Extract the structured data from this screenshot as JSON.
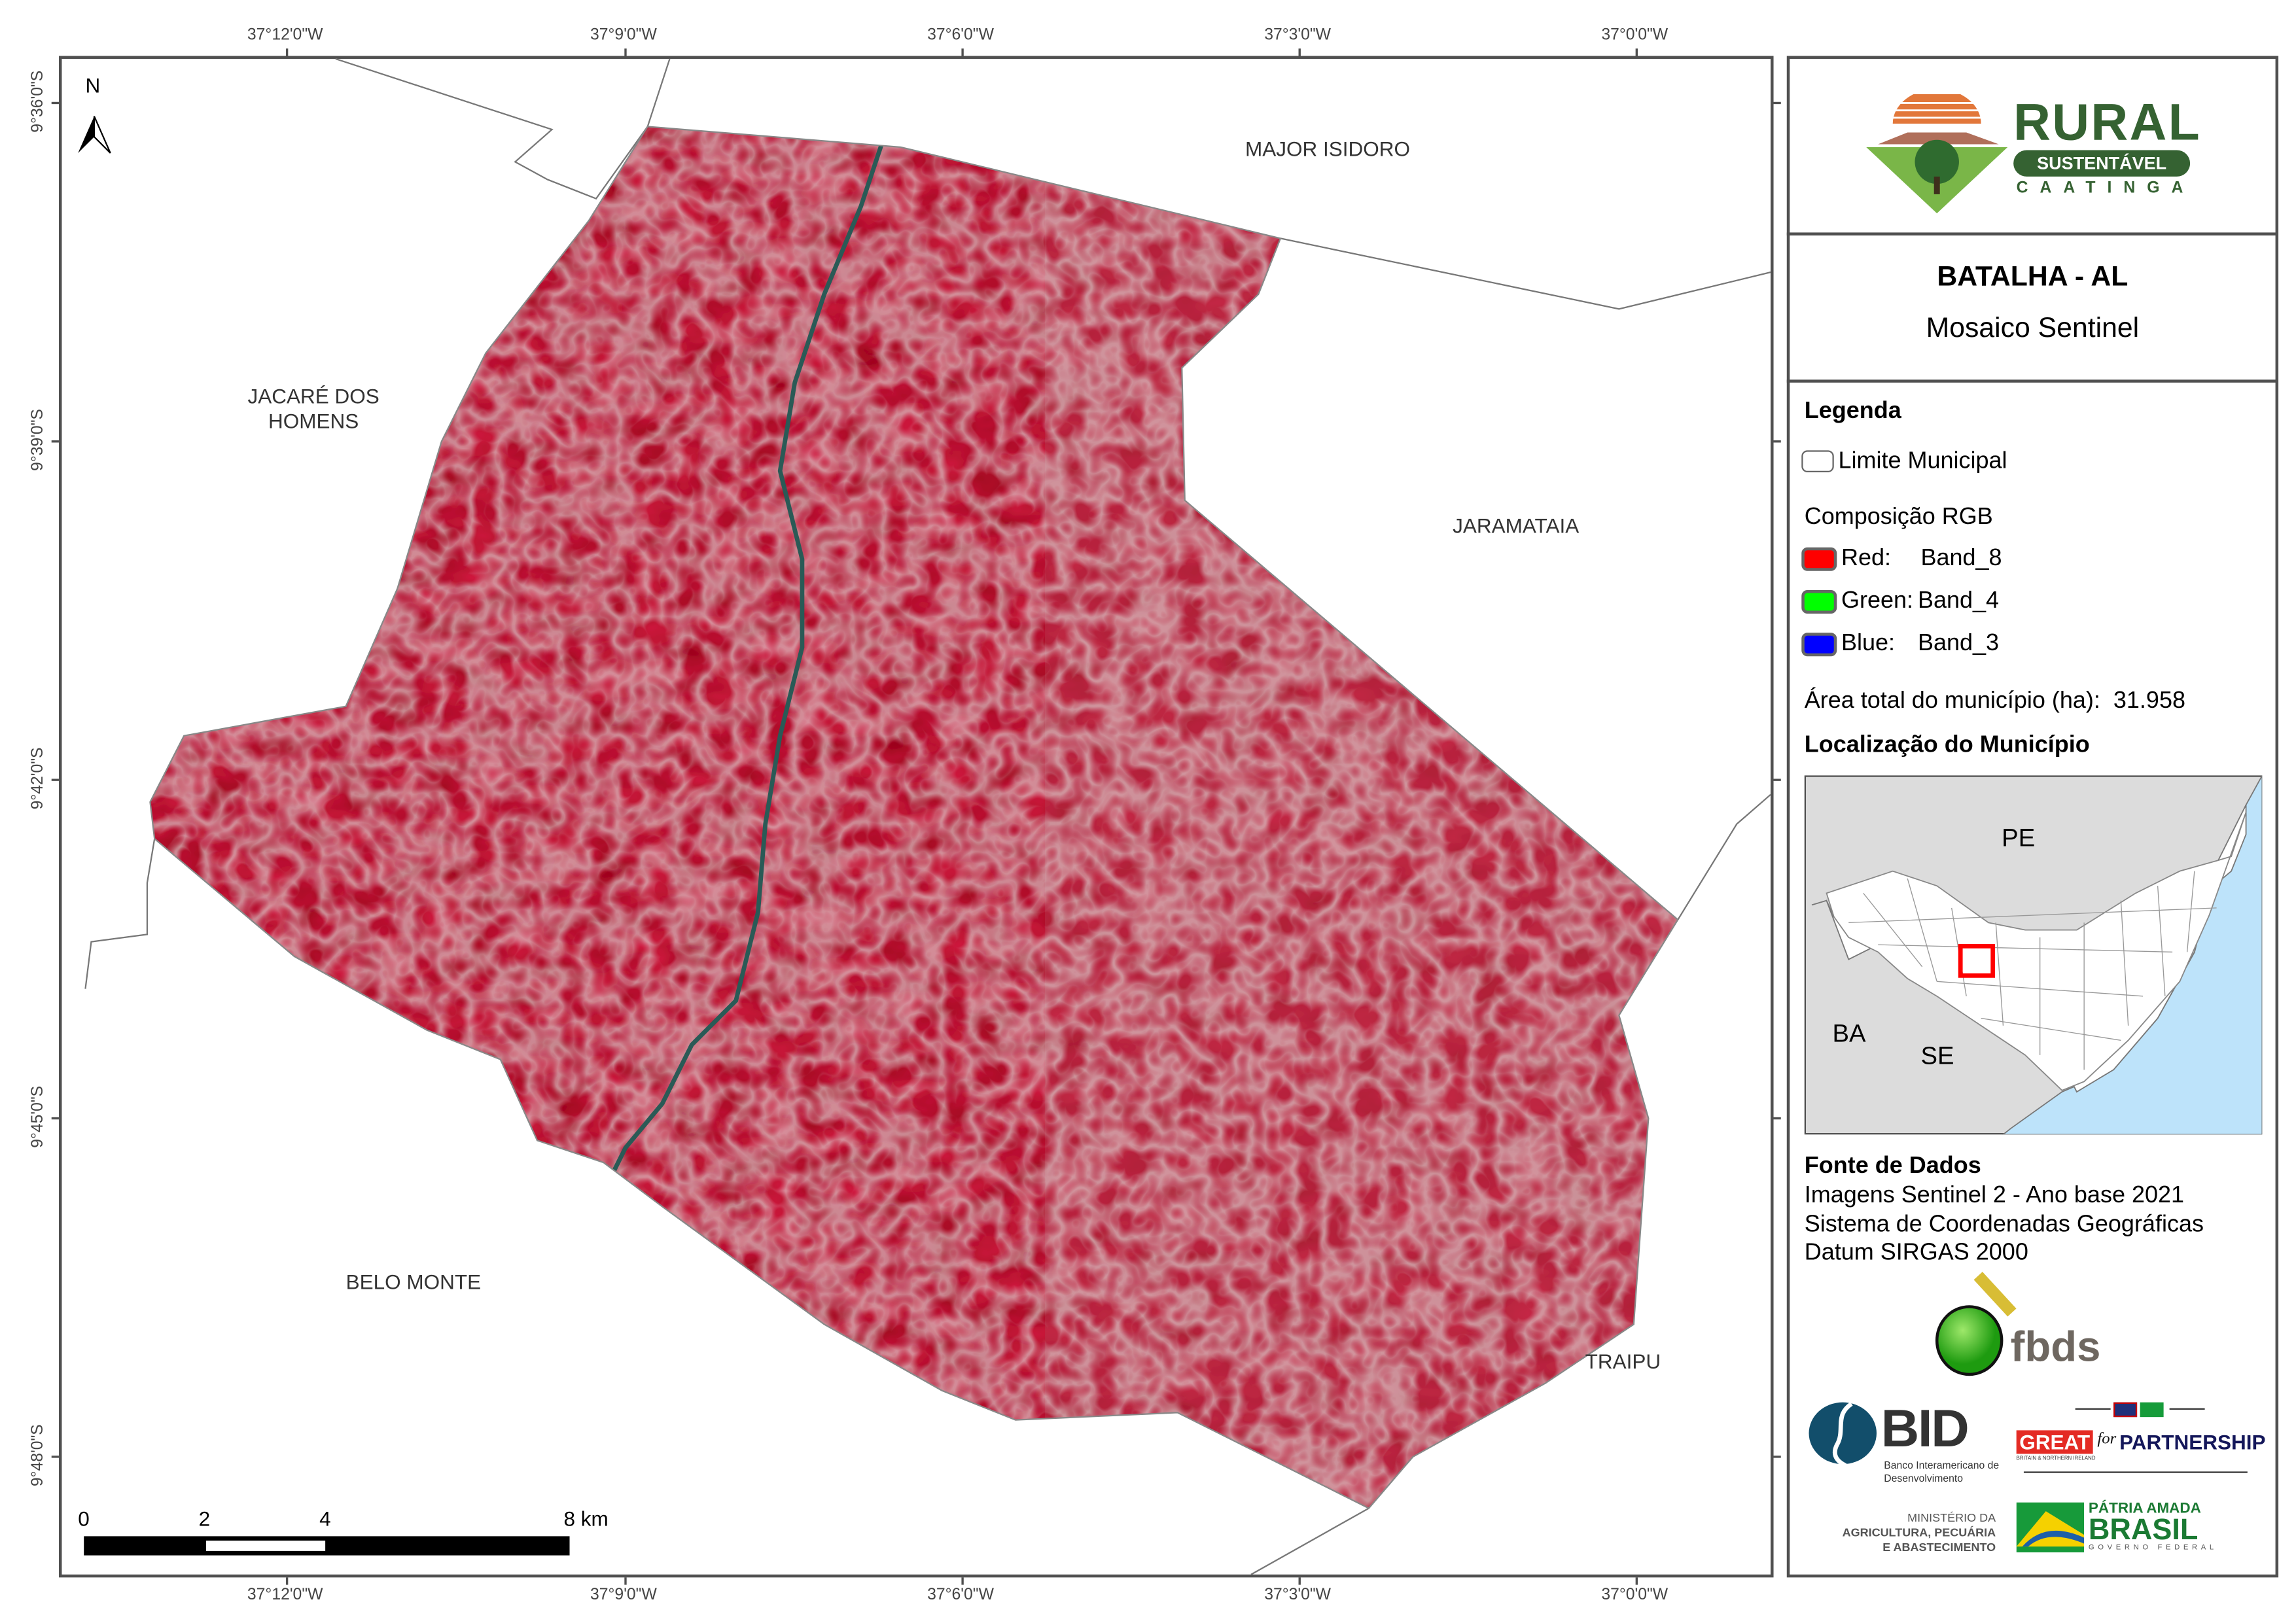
{
  "header": {
    "logo": {
      "title": "RURAL",
      "subtitle": "SUSTENTÁVEL",
      "tagline": "CAATINGA"
    },
    "title": "BATALHA - AL",
    "subtitle": "Mosaico Sentinel"
  },
  "legend": {
    "heading": "Legenda",
    "boundary_label": "Limite Municipal",
    "rgb_heading": "Composição RGB",
    "bands": [
      {
        "channel": "Red:",
        "band": "Band_8",
        "color": "#ff0000"
      },
      {
        "channel": "Green:",
        "band": "Band_4",
        "color": "#00ff00"
      },
      {
        "channel": "Blue:",
        "band": "Band_3",
        "color": "#0000ff"
      }
    ],
    "area_label": "Área total do município (ha):",
    "area_value": "31.958",
    "location_heading": "Localização do Município"
  },
  "inset": {
    "labels": [
      "PE",
      "BA",
      "SE"
    ],
    "highlight_color": "#ff0000",
    "ocean_color": "#bde3fa"
  },
  "sources": {
    "heading": "Fonte de Dados",
    "lines": [
      "Imagens Sentinel 2 - Ano base 2021",
      "Sistema de Coordenadas Geográficas",
      "Datum SIRGAS 2000"
    ]
  },
  "logos": {
    "fbds": "fbds",
    "bid": "BID",
    "bid_sub": "Banco Interamericano de Desenvolvimento",
    "great": "GREAT",
    "great_for": "for",
    "great_partnership": "PARTNERSHIP",
    "great_sub": "BRITAIN & NORTHERN IRELAND",
    "ministry_1": "MINISTÉRIO DA",
    "ministry_2": "AGRICULTURA, PECUÁRIA",
    "ministry_3": "E ABASTECIMENTO",
    "brasil_1": "PÁTRIA AMADA",
    "brasil_2": "BRASIL",
    "brasil_3": "GOVERNO FEDERAL"
  },
  "map": {
    "north_label": "N",
    "longitude_ticks": [
      "37°12'0\"W",
      "37°9'0\"W",
      "37°6'0\"W",
      "37°3'0\"W",
      "37°0'0\"W"
    ],
    "latitude_ticks": [
      "9°36'0\"S",
      "9°39'0\"S",
      "9°42'0\"S",
      "9°45'0\"S",
      "9°48'0\"S"
    ],
    "neighbors": {
      "major_isidoro": "MAJOR ISIDORO",
      "jacare_1": "JACARÉ DOS",
      "jacare_2": "HOMENS",
      "jaramataia": "JARAMATAIA",
      "belo_monte": "BELO MONTE",
      "traipu": "TRAIPU"
    },
    "scale": {
      "labels": [
        "0",
        "2",
        "4",
        "8 km"
      ]
    },
    "image_color": "#d8244c"
  }
}
